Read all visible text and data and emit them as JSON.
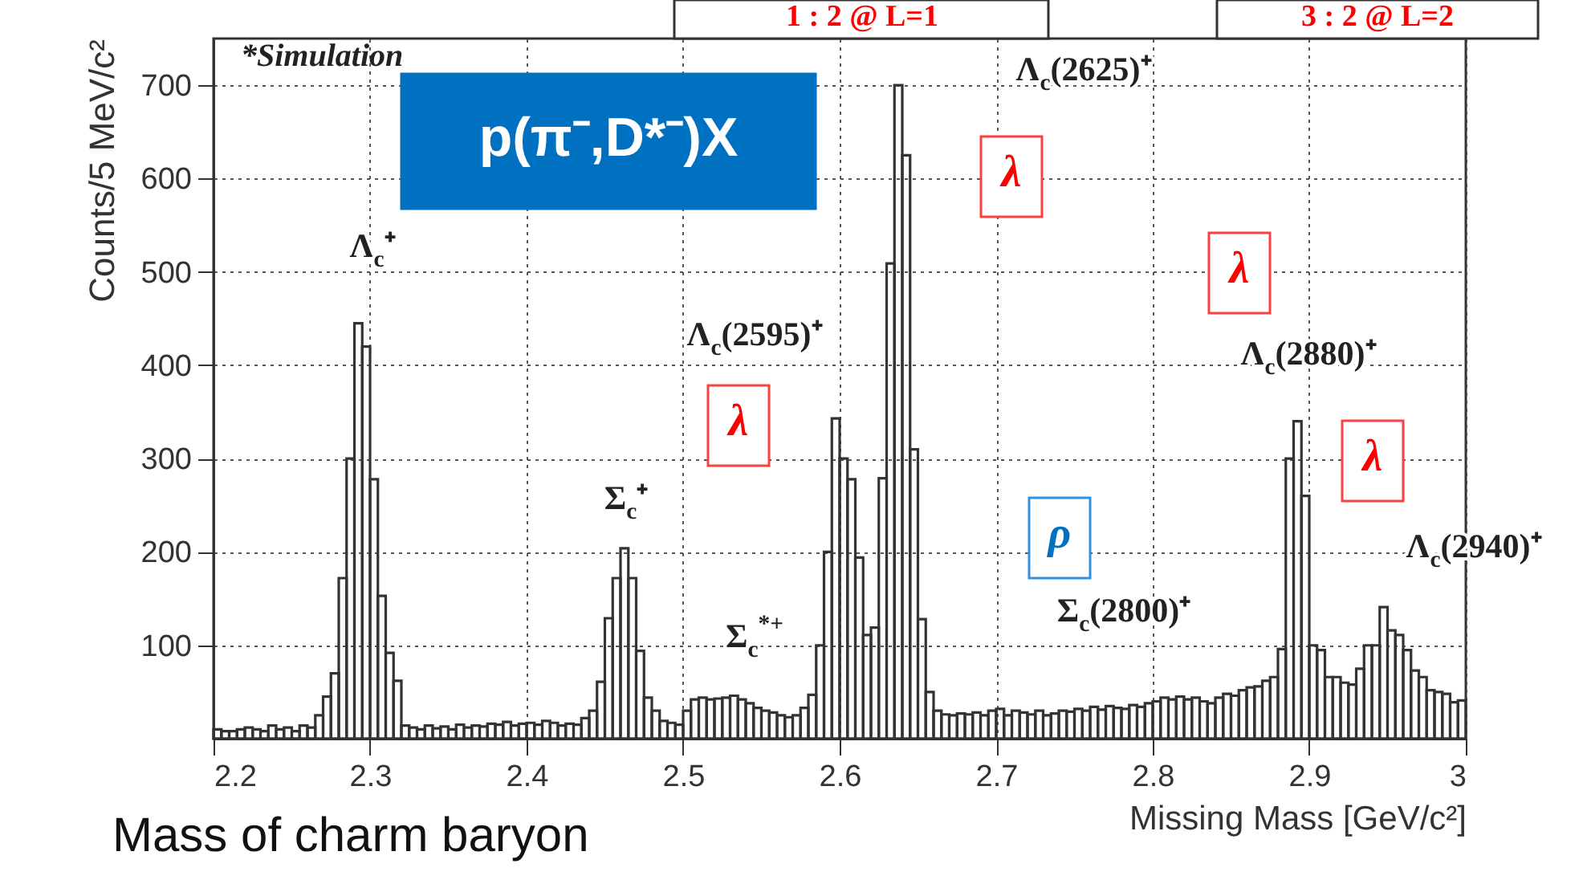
{
  "chart_data": {
    "type": "histogram",
    "xlabel": "Missing Mass [GeV/c²]",
    "ylabel": "Counts/5 MeV/c²",
    "color": "#333333",
    "bins": [
      2.2,
      2.205,
      2.21,
      2.215,
      2.22,
      2.225,
      2.23,
      2.235,
      2.24,
      2.245,
      2.25,
      2.255,
      2.26,
      2.265,
      2.27,
      2.275,
      2.28,
      2.285,
      2.29,
      2.295,
      2.3,
      2.305,
      2.31,
      2.315,
      2.32,
      2.325,
      2.33,
      2.335,
      2.34,
      2.345,
      2.35,
      2.355,
      2.36,
      2.365,
      2.37,
      2.375,
      2.38,
      2.385,
      2.39,
      2.395,
      2.4,
      2.405,
      2.41,
      2.415,
      2.42,
      2.425,
      2.43,
      2.435,
      2.44,
      2.445,
      2.45,
      2.455,
      2.46,
      2.465,
      2.47,
      2.475,
      2.48,
      2.485,
      2.49,
      2.495,
      2.5,
      2.505,
      2.51,
      2.515,
      2.52,
      2.525,
      2.53,
      2.535,
      2.54,
      2.545,
      2.55,
      2.555,
      2.56,
      2.565,
      2.57,
      2.575,
      2.58,
      2.585,
      2.59,
      2.595,
      2.6,
      2.605,
      2.61,
      2.615,
      2.62,
      2.625,
      2.63,
      2.635,
      2.64,
      2.645,
      2.65,
      2.655,
      2.66,
      2.665,
      2.67,
      2.675,
      2.68,
      2.685,
      2.69,
      2.695,
      2.7,
      2.705,
      2.71,
      2.715,
      2.72,
      2.725,
      2.73,
      2.735,
      2.74,
      2.745,
      2.75,
      2.755,
      2.76,
      2.765,
      2.77,
      2.775,
      2.78,
      2.785,
      2.79,
      2.795,
      2.8,
      2.805,
      2.81,
      2.815,
      2.82,
      2.825,
      2.83,
      2.835,
      2.84,
      2.845,
      2.85,
      2.855,
      2.86,
      2.865,
      2.87,
      2.875,
      2.88,
      2.885,
      2.89,
      2.895,
      2.9,
      2.905,
      2.91,
      2.915,
      2.92,
      2.925,
      2.93,
      2.935,
      2.94,
      2.945,
      2.95,
      2.955,
      2.96,
      2.965,
      2.97,
      2.975,
      2.98,
      2.985,
      2.99,
      2.995,
      3.0
    ],
    "values": [
      10,
      8,
      8,
      10,
      12,
      10,
      8,
      14,
      10,
      12,
      8,
      14,
      12,
      25,
      45,
      70,
      172,
      300,
      445,
      420,
      278,
      153,
      92,
      62,
      14,
      12,
      10,
      14,
      11,
      13,
      10,
      15,
      12,
      14,
      13,
      16,
      15,
      18,
      14,
      16,
      17,
      15,
      19,
      17,
      14,
      16,
      15,
      22,
      30,
      61,
      129,
      172,
      204,
      172,
      94,
      44,
      30,
      19,
      17,
      15,
      30,
      42,
      44,
      42,
      43,
      44,
      46,
      42,
      38,
      33,
      30,
      28,
      25,
      23,
      25,
      33,
      47,
      100,
      200,
      343,
      300,
      278,
      194,
      111,
      119,
      279,
      509,
      700,
      625,
      310,
      128,
      50,
      30,
      26,
      25,
      27,
      26,
      28,
      25,
      30,
      32,
      25,
      30,
      28,
      26,
      30,
      25,
      27,
      30,
      29,
      32,
      30,
      34,
      31,
      35,
      33,
      32,
      36,
      34,
      38,
      40,
      44,
      42,
      45,
      42,
      44,
      40,
      38,
      44,
      48,
      46,
      52,
      55,
      56,
      62,
      66,
      96,
      300,
      340,
      260,
      100,
      95,
      66,
      66,
      60,
      58,
      75,
      100,
      100,
      141,
      116,
      111,
      95,
      73,
      66,
      52,
      50,
      48,
      39,
      41
    ],
    "xlim": [
      2.2,
      3.0
    ],
    "ylim": [
      0,
      750
    ],
    "xticks": [
      2.2,
      2.3,
      2.4,
      2.5,
      2.6,
      2.7,
      2.8,
      2.9,
      3
    ],
    "yticks": [
      100,
      200,
      300,
      400,
      500,
      600,
      700
    ],
    "grid": true,
    "annotations": [
      "Λ$_{c}$⁺",
      "Σ$_{c}$⁺",
      "Σ$_{c}$$^{*+}$",
      "Λ$_{c}$(2595)⁺",
      "Λ$_{c}$(2625)⁺",
      "Σ$_{c}$(2800)⁺",
      "Λ$_{c}$(2880)⁺",
      "Λ$_{c}$(2940)⁺",
      "λ",
      "λ",
      "λ",
      "λ",
      "ρ",
      "*Simulation",
      "p(π⁻,D*⁻)X",
      "1 : 2 @ L=1",
      "3 : 2 @ L=2",
      "Mass of charm baryon"
    ]
  }
}
